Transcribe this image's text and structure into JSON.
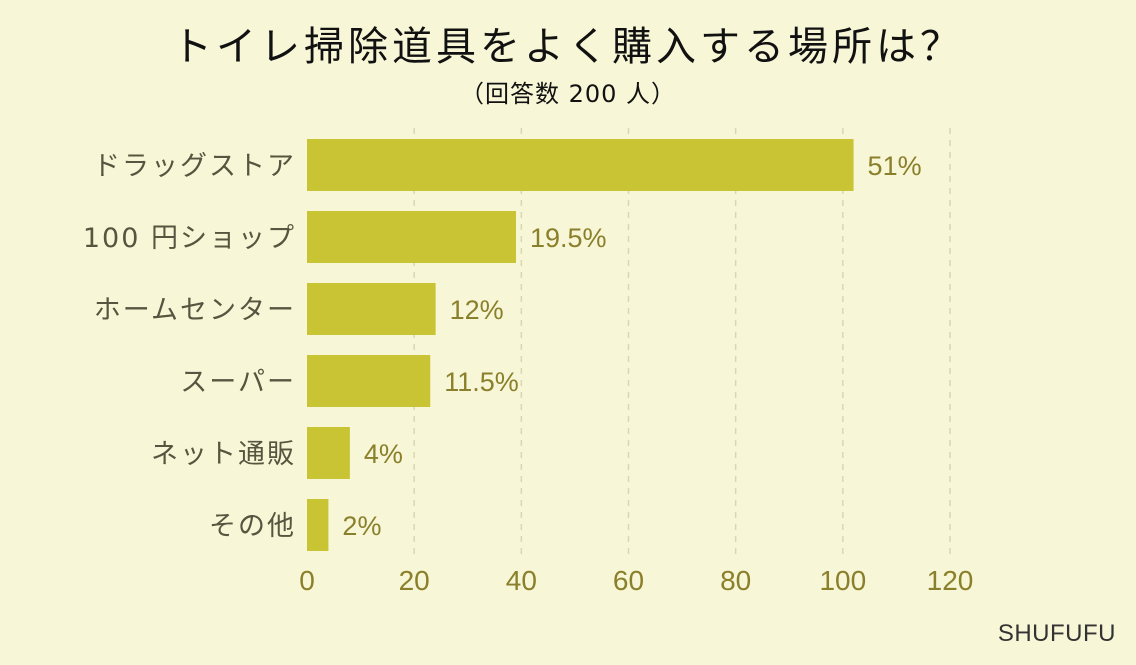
{
  "title": "トイレ掃除道具をよく購入する場所は？",
  "subtitle": "（回答数 200 人）",
  "brand": "SHUFUFU",
  "colors": {
    "background": "#f7f6d6",
    "bar": "#c9c433",
    "tick_text": "#8a7f2a",
    "category_text": "#555540",
    "gridline": "#d9d7b4"
  },
  "chart_data": {
    "type": "bar",
    "orientation": "horizontal",
    "categories": [
      "ドラッグストア",
      "100 円ショップ",
      "ホームセンター",
      "スーパー",
      "ネット通販",
      "その他"
    ],
    "values": [
      102,
      39,
      24,
      23,
      8,
      4
    ],
    "data_labels": [
      "51%",
      "19.5%",
      "12%",
      "11.5%",
      "4%",
      "2%"
    ],
    "xlim": [
      0,
      120
    ],
    "xticks": [
      "0",
      "20",
      "40",
      "60",
      "80",
      "100",
      "120"
    ],
    "grid": true
  }
}
